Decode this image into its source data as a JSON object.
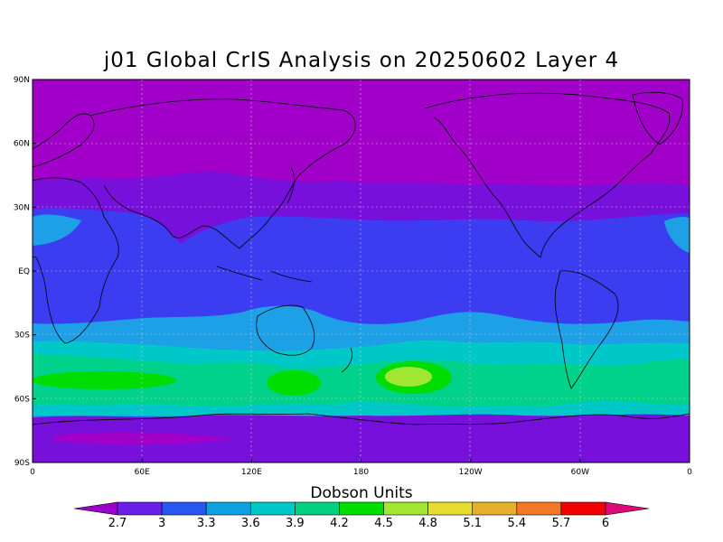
{
  "title": "j01 Global CrIS Analysis on 20250602 Layer 4",
  "lat_labels": [
    "90N",
    "60N",
    "30N",
    "EQ",
    "30S",
    "60S",
    "90S"
  ],
  "lon_labels": [
    "0",
    "60E",
    "120E",
    "180",
    "120W",
    "60W",
    "0"
  ],
  "colorbar": {
    "label": "Dobson Units",
    "ticks": [
      "2.7",
      "3",
      "3.3",
      "3.6",
      "3.9",
      "4.2",
      "4.5",
      "4.8",
      "5.1",
      "5.4",
      "5.7",
      "6"
    ],
    "colors": [
      "#9b00c8",
      "#6a1fe6",
      "#2856f0",
      "#0ea0e0",
      "#00c8c8",
      "#00d080",
      "#00dc00",
      "#a0e632",
      "#e6dc32",
      "#e6af2d",
      "#f07828",
      "#f00000",
      "#dc0a78"
    ]
  },
  "legend_colors": {
    "lt_2.7": "#a000c8",
    "2.7_3": "#7810dc",
    "3_3.3": "#3c3cf0",
    "3.3_3.6": "#1ea0e6",
    "3.6_3.9": "#00c8c8",
    "3.9_4.2": "#00d28c",
    "4.2_4.5": "#00dc00",
    "4.5_4.8": "#a0e632"
  }
}
